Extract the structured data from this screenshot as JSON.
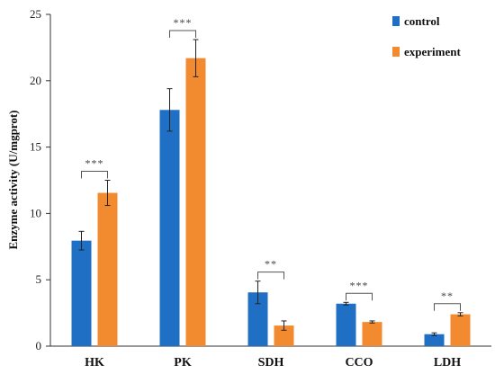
{
  "chart_data": {
    "type": "bar",
    "categories": [
      "HK",
      "PK",
      "SDH",
      "CCO",
      "LDH"
    ],
    "series": [
      {
        "name": "control",
        "color": "#1f6fc5",
        "values": [
          7.95,
          17.8,
          4.05,
          3.2,
          0.9
        ],
        "errors": [
          0.7,
          1.6,
          0.85,
          0.1,
          0.1
        ]
      },
      {
        "name": "experiment",
        "color": "#f28a30",
        "values": [
          11.55,
          21.7,
          1.55,
          1.82,
          2.4
        ],
        "errors": [
          0.95,
          1.4,
          0.35,
          0.08,
          0.12
        ]
      }
    ],
    "significance": [
      "***",
      "***",
      "**",
      "***",
      "**"
    ],
    "ylabel": "Enzyme activity (U/mgprot)",
    "xlabel": "",
    "ylim": [
      0,
      25
    ],
    "yticks": [
      "0",
      "5",
      "10",
      "15",
      "20",
      "25"
    ],
    "legend_position": "top-right",
    "grid": false
  }
}
